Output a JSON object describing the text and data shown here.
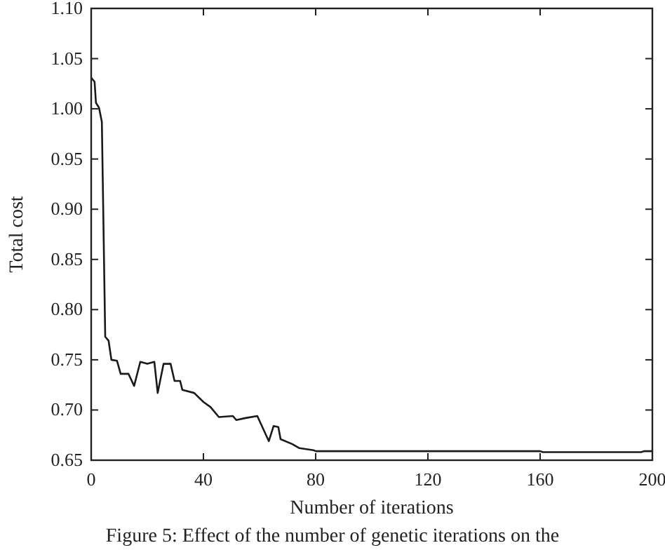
{
  "chart_data": {
    "type": "line",
    "xlabel": "Number of iterations",
    "ylabel": "Total cost",
    "annotations": [
      "Figure 5: Effect of the number of genetic iterations on the"
    ],
    "xlim": [
      0,
      200
    ],
    "xticks": [
      0,
      40,
      80,
      120,
      160,
      200
    ],
    "ylim": [
      0.65,
      1.1
    ],
    "yticks": [
      {
        "value": 0.65,
        "label": "0.65"
      },
      {
        "value": 0.7,
        "label": "0.70"
      },
      {
        "value": 0.75,
        "label": "0.75"
      },
      {
        "value": 0.8,
        "label": "0.80"
      },
      {
        "value": 0.85,
        "label": "0.85"
      },
      {
        "value": 0.9,
        "label": "0.90"
      },
      {
        "value": 0.95,
        "label": "0.95"
      },
      {
        "value": 1.0,
        "label": "1.00"
      },
      {
        "value": 1.05,
        "label": "1.05"
      },
      {
        "value": 1.1,
        "label": "1.10"
      }
    ],
    "grid": false,
    "marker": "none",
    "line_style": "solid",
    "series": [
      {
        "color": "#1a1a1a",
        "x": [
          0,
          1.2,
          1.7,
          2.8,
          3.8,
          5,
          6.2,
          7.2,
          9.2,
          10.5,
          13.3,
          15.3,
          17.5,
          20,
          22.5,
          23.7,
          25.8,
          28.3,
          29.7,
          31.7,
          32.5,
          36.7,
          40,
          42.5,
          45.5,
          50.5,
          51.7,
          55,
          59.2,
          63.3,
          65,
          66.7,
          67.5,
          71.7,
          74.2,
          79.2,
          80,
          160,
          161,
          196,
          197,
          200
        ],
        "values": [
          1.031,
          1.027,
          1.006,
          1.001,
          0.987,
          0.773,
          0.769,
          0.75,
          0.749,
          0.736,
          0.736,
          0.724,
          0.748,
          0.746,
          0.748,
          0.717,
          0.746,
          0.746,
          0.729,
          0.729,
          0.72,
          0.717,
          0.708,
          0.703,
          0.693,
          0.694,
          0.69,
          0.692,
          0.694,
          0.669,
          0.684,
          0.683,
          0.671,
          0.666,
          0.662,
          0.66,
          0.659,
          0.659,
          0.658,
          0.658,
          0.659,
          0.659
        ]
      }
    ]
  }
}
